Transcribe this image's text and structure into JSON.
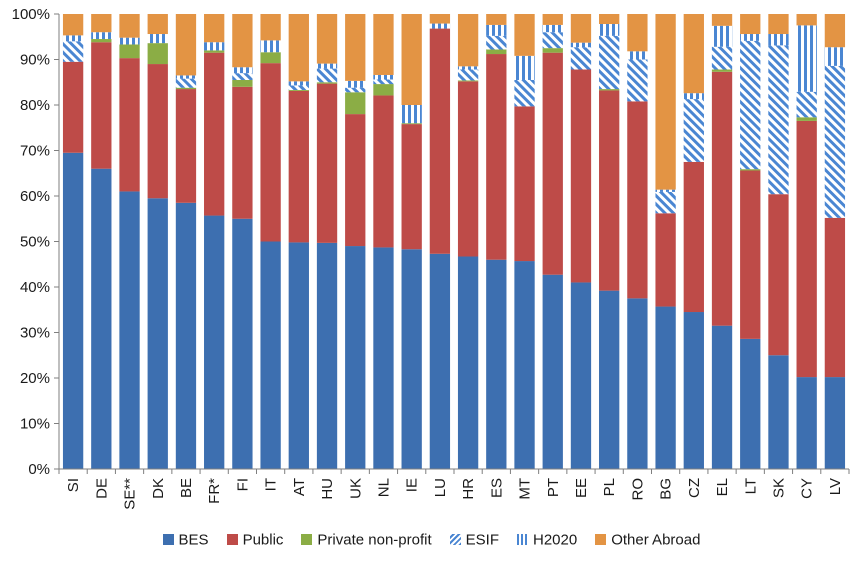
{
  "chart_data": {
    "type": "bar",
    "stacked": true,
    "categories": [
      "SI",
      "DE",
      "SE**",
      "DK",
      "BE",
      "FR*",
      "FI",
      "IT",
      "AT",
      "HU",
      "UK",
      "NL",
      "IE",
      "LU",
      "HR",
      "ES",
      "MT",
      "PT",
      "EE",
      "PL",
      "RO",
      "BG",
      "CZ",
      "EL",
      "LT",
      "SK",
      "CY",
      "LV"
    ],
    "ylim": [
      0,
      100
    ],
    "yticks": [
      "0%",
      "10%",
      "20%",
      "30%",
      "40%",
      "50%",
      "60%",
      "70%",
      "80%",
      "90%",
      "100%"
    ],
    "grid": false,
    "legend_position": "bottom",
    "series": [
      {
        "name": "BES",
        "color": "#3D6FB0",
        "pattern": "solid",
        "values": [
          69.5,
          66,
          61,
          59.5,
          58.5,
          55.7,
          55,
          50,
          49.8,
          49.7,
          49,
          48.7,
          48.3,
          47.3,
          46.7,
          46,
          45.7,
          42.7,
          41,
          39.2,
          37.5,
          35.7,
          34.5,
          31.5,
          28.6,
          25,
          20.2,
          20.2
        ]
      },
      {
        "name": "Public",
        "color": "#BE4B48",
        "pattern": "solid",
        "values": [
          20,
          27.8,
          29.3,
          29.5,
          25,
          35.8,
          29,
          39.2,
          33.3,
          35,
          29,
          33.4,
          27.5,
          49.5,
          38.5,
          45.2,
          34,
          48.8,
          46.8,
          44,
          43.3,
          20.5,
          33,
          55.8,
          37,
          35.4,
          56.3,
          35
        ]
      },
      {
        "name": "Private non-profit",
        "color": "#8BAD45",
        "pattern": "solid",
        "values": [
          0,
          0.7,
          3,
          4.6,
          0.3,
          0.5,
          1.5,
          2.4,
          0.2,
          0.3,
          4.8,
          2.5,
          0.2,
          0,
          0.2,
          1,
          0,
          1,
          0,
          0.3,
          0,
          0,
          0,
          0.5,
          0.3,
          0,
          0.8,
          0
        ]
      },
      {
        "name": "ESIF",
        "color": "#4A86D2",
        "pattern": "diag",
        "values": [
          4.5,
          0,
          0,
          0,
          2,
          0,
          1.5,
          0,
          1,
          3,
          1,
          1,
          0,
          0,
          2.4,
          3,
          5.8,
          3.5,
          4.9,
          11.7,
          9.2,
          4.7,
          13.8,
          5,
          28.2,
          32.7,
          5.6,
          33.4
        ]
      },
      {
        "name": "H2020",
        "color": "#4A86D2",
        "pattern": "vert",
        "values": [
          1.3,
          1.5,
          1.5,
          2,
          0.7,
          1.8,
          1.3,
          2.6,
          0.9,
          1.1,
          1.5,
          1,
          4,
          1.1,
          0.7,
          2.4,
          5.3,
          1.6,
          1,
          2.6,
          1.8,
          0.5,
          1.3,
          4.6,
          1.5,
          2.5,
          14.6,
          4.1
        ]
      },
      {
        "name": "Other Abroad",
        "color": "#E39444",
        "pattern": "solid",
        "values": [
          4.7,
          4,
          5.2,
          4.4,
          13.5,
          6.2,
          11.7,
          5.8,
          14.8,
          10.9,
          14.7,
          13.4,
          20,
          2.1,
          11.5,
          2.4,
          9.2,
          2.4,
          6.3,
          2.2,
          8.2,
          38.6,
          17.4,
          2.6,
          4.4,
          4.4,
          2.5,
          7.3
        ]
      }
    ]
  }
}
